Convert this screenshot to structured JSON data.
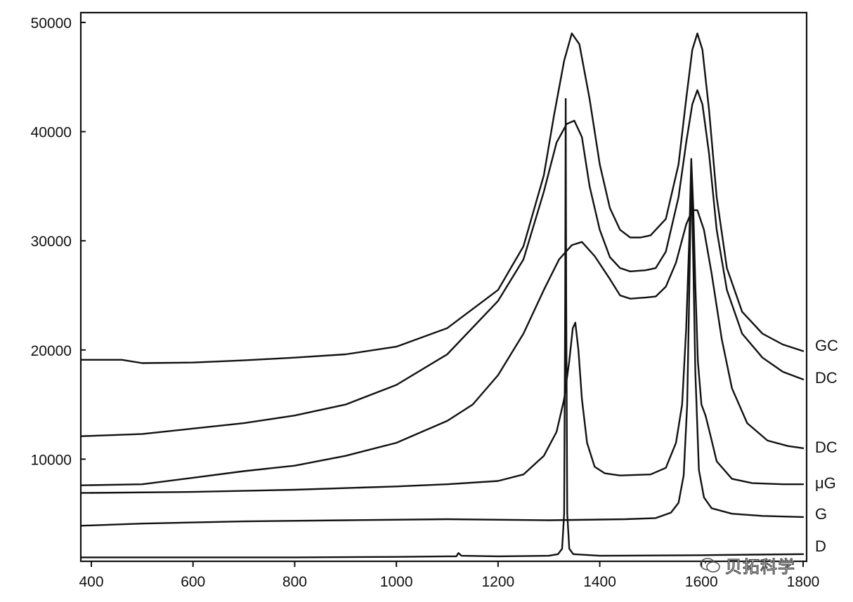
{
  "chart_data": {
    "type": "line",
    "title": "",
    "xlabel": "",
    "ylabel": "",
    "xlim": [
      380,
      1800
    ],
    "ylim": [
      0,
      50000
    ],
    "x_ticks": [
      400,
      600,
      800,
      1000,
      1200,
      1400,
      1600,
      1800
    ],
    "y_ticks": [
      10000,
      20000,
      30000,
      40000,
      50000
    ],
    "grid": false,
    "legend": "labels at right end of each curve",
    "series": [
      {
        "name": "GC",
        "points": [
          [
            380,
            19100
          ],
          [
            460,
            19100
          ],
          [
            500,
            18800
          ],
          [
            600,
            18850
          ],
          [
            700,
            19050
          ],
          [
            800,
            19300
          ],
          [
            900,
            19600
          ],
          [
            1000,
            20300
          ],
          [
            1100,
            22000
          ],
          [
            1200,
            25500
          ],
          [
            1250,
            29500
          ],
          [
            1290,
            36000
          ],
          [
            1310,
            41500
          ],
          [
            1330,
            46500
          ],
          [
            1345,
            49000
          ],
          [
            1360,
            48000
          ],
          [
            1380,
            43000
          ],
          [
            1400,
            37000
          ],
          [
            1420,
            33000
          ],
          [
            1440,
            31000
          ],
          [
            1460,
            30300
          ],
          [
            1480,
            30300
          ],
          [
            1500,
            30500
          ],
          [
            1530,
            32000
          ],
          [
            1555,
            37000
          ],
          [
            1570,
            43000
          ],
          [
            1582,
            47500
          ],
          [
            1592,
            49000
          ],
          [
            1602,
            47500
          ],
          [
            1615,
            42000
          ],
          [
            1630,
            34000
          ],
          [
            1650,
            27500
          ],
          [
            1680,
            23500
          ],
          [
            1720,
            21500
          ],
          [
            1760,
            20500
          ],
          [
            1800,
            19900
          ]
        ]
      },
      {
        "name": "DC",
        "points": [
          [
            380,
            12100
          ],
          [
            500,
            12300
          ],
          [
            600,
            12800
          ],
          [
            700,
            13300
          ],
          [
            800,
            14000
          ],
          [
            900,
            15000
          ],
          [
            1000,
            16800
          ],
          [
            1100,
            19600
          ],
          [
            1200,
            24500
          ],
          [
            1250,
            28300
          ],
          [
            1290,
            34500
          ],
          [
            1315,
            39000
          ],
          [
            1335,
            40700
          ],
          [
            1350,
            41000
          ],
          [
            1365,
            39500
          ],
          [
            1380,
            35000
          ],
          [
            1400,
            31000
          ],
          [
            1420,
            28500
          ],
          [
            1440,
            27500
          ],
          [
            1460,
            27200
          ],
          [
            1490,
            27300
          ],
          [
            1510,
            27500
          ],
          [
            1530,
            29000
          ],
          [
            1555,
            34000
          ],
          [
            1570,
            39000
          ],
          [
            1582,
            42500
          ],
          [
            1592,
            43800
          ],
          [
            1602,
            42500
          ],
          [
            1615,
            38000
          ],
          [
            1630,
            31000
          ],
          [
            1650,
            25500
          ],
          [
            1680,
            21500
          ],
          [
            1720,
            19300
          ],
          [
            1760,
            18000
          ],
          [
            1800,
            17300
          ]
        ]
      },
      {
        "name": "DC",
        "points": [
          [
            380,
            7600
          ],
          [
            500,
            7700
          ],
          [
            600,
            8300
          ],
          [
            700,
            8900
          ],
          [
            800,
            9400
          ],
          [
            900,
            10300
          ],
          [
            1000,
            11500
          ],
          [
            1100,
            13500
          ],
          [
            1150,
            15000
          ],
          [
            1200,
            17700
          ],
          [
            1250,
            21500
          ],
          [
            1290,
            25500
          ],
          [
            1320,
            28300
          ],
          [
            1345,
            29600
          ],
          [
            1365,
            29900
          ],
          [
            1390,
            28600
          ],
          [
            1420,
            26500
          ],
          [
            1440,
            25000
          ],
          [
            1460,
            24700
          ],
          [
            1490,
            24800
          ],
          [
            1510,
            24900
          ],
          [
            1530,
            25800
          ],
          [
            1550,
            28000
          ],
          [
            1570,
            31500
          ],
          [
            1582,
            32800
          ],
          [
            1592,
            32800
          ],
          [
            1605,
            31000
          ],
          [
            1620,
            27000
          ],
          [
            1640,
            21000
          ],
          [
            1660,
            16500
          ],
          [
            1690,
            13300
          ],
          [
            1730,
            11700
          ],
          [
            1770,
            11200
          ],
          [
            1800,
            11000
          ]
        ]
      },
      {
        "name": "μG",
        "points": [
          [
            380,
            6900
          ],
          [
            600,
            7000
          ],
          [
            800,
            7200
          ],
          [
            1000,
            7500
          ],
          [
            1100,
            7700
          ],
          [
            1200,
            8000
          ],
          [
            1250,
            8600
          ],
          [
            1290,
            10300
          ],
          [
            1315,
            12500
          ],
          [
            1330,
            15500
          ],
          [
            1340,
            19000
          ],
          [
            1347,
            22000
          ],
          [
            1352,
            22500
          ],
          [
            1358,
            20000
          ],
          [
            1365,
            15500
          ],
          [
            1375,
            11500
          ],
          [
            1390,
            9300
          ],
          [
            1410,
            8700
          ],
          [
            1440,
            8500
          ],
          [
            1500,
            8600
          ],
          [
            1530,
            9200
          ],
          [
            1550,
            11500
          ],
          [
            1562,
            15000
          ],
          [
            1570,
            22000
          ],
          [
            1576,
            30000
          ],
          [
            1580,
            37500
          ],
          [
            1584,
            33000
          ],
          [
            1588,
            26000
          ],
          [
            1593,
            19000
          ],
          [
            1600,
            15000
          ],
          [
            1608,
            14000
          ],
          [
            1616,
            12500
          ],
          [
            1630,
            9800
          ],
          [
            1660,
            8200
          ],
          [
            1700,
            7800
          ],
          [
            1760,
            7700
          ],
          [
            1800,
            7700
          ]
        ]
      },
      {
        "name": "G",
        "points": [
          [
            380,
            3900
          ],
          [
            500,
            4100
          ],
          [
            700,
            4300
          ],
          [
            900,
            4400
          ],
          [
            1100,
            4500
          ],
          [
            1300,
            4400
          ],
          [
            1450,
            4500
          ],
          [
            1510,
            4600
          ],
          [
            1540,
            5100
          ],
          [
            1555,
            6000
          ],
          [
            1565,
            8500
          ],
          [
            1572,
            15000
          ],
          [
            1576,
            25000
          ],
          [
            1580,
            36500
          ],
          [
            1584,
            28000
          ],
          [
            1588,
            18000
          ],
          [
            1595,
            9000
          ],
          [
            1605,
            6500
          ],
          [
            1620,
            5500
          ],
          [
            1660,
            5000
          ],
          [
            1720,
            4800
          ],
          [
            1800,
            4700
          ]
        ]
      },
      {
        "name": "D",
        "points": [
          [
            380,
            1000
          ],
          [
            600,
            1000
          ],
          [
            800,
            1000
          ],
          [
            1000,
            1050
          ],
          [
            1100,
            1100
          ],
          [
            1118,
            1100
          ],
          [
            1122,
            1400
          ],
          [
            1128,
            1150
          ],
          [
            1200,
            1100
          ],
          [
            1300,
            1150
          ],
          [
            1318,
            1300
          ],
          [
            1326,
            1800
          ],
          [
            1330,
            5000
          ],
          [
            1332,
            25000
          ],
          [
            1333,
            43000
          ],
          [
            1334,
            25000
          ],
          [
            1336,
            5000
          ],
          [
            1340,
            1800
          ],
          [
            1348,
            1300
          ],
          [
            1400,
            1150
          ],
          [
            1600,
            1200
          ],
          [
            1700,
            1250
          ],
          [
            1800,
            1300
          ]
        ]
      }
    ]
  },
  "watermark": {
    "text": "贝拓科学",
    "icon": "wechat-icon"
  }
}
